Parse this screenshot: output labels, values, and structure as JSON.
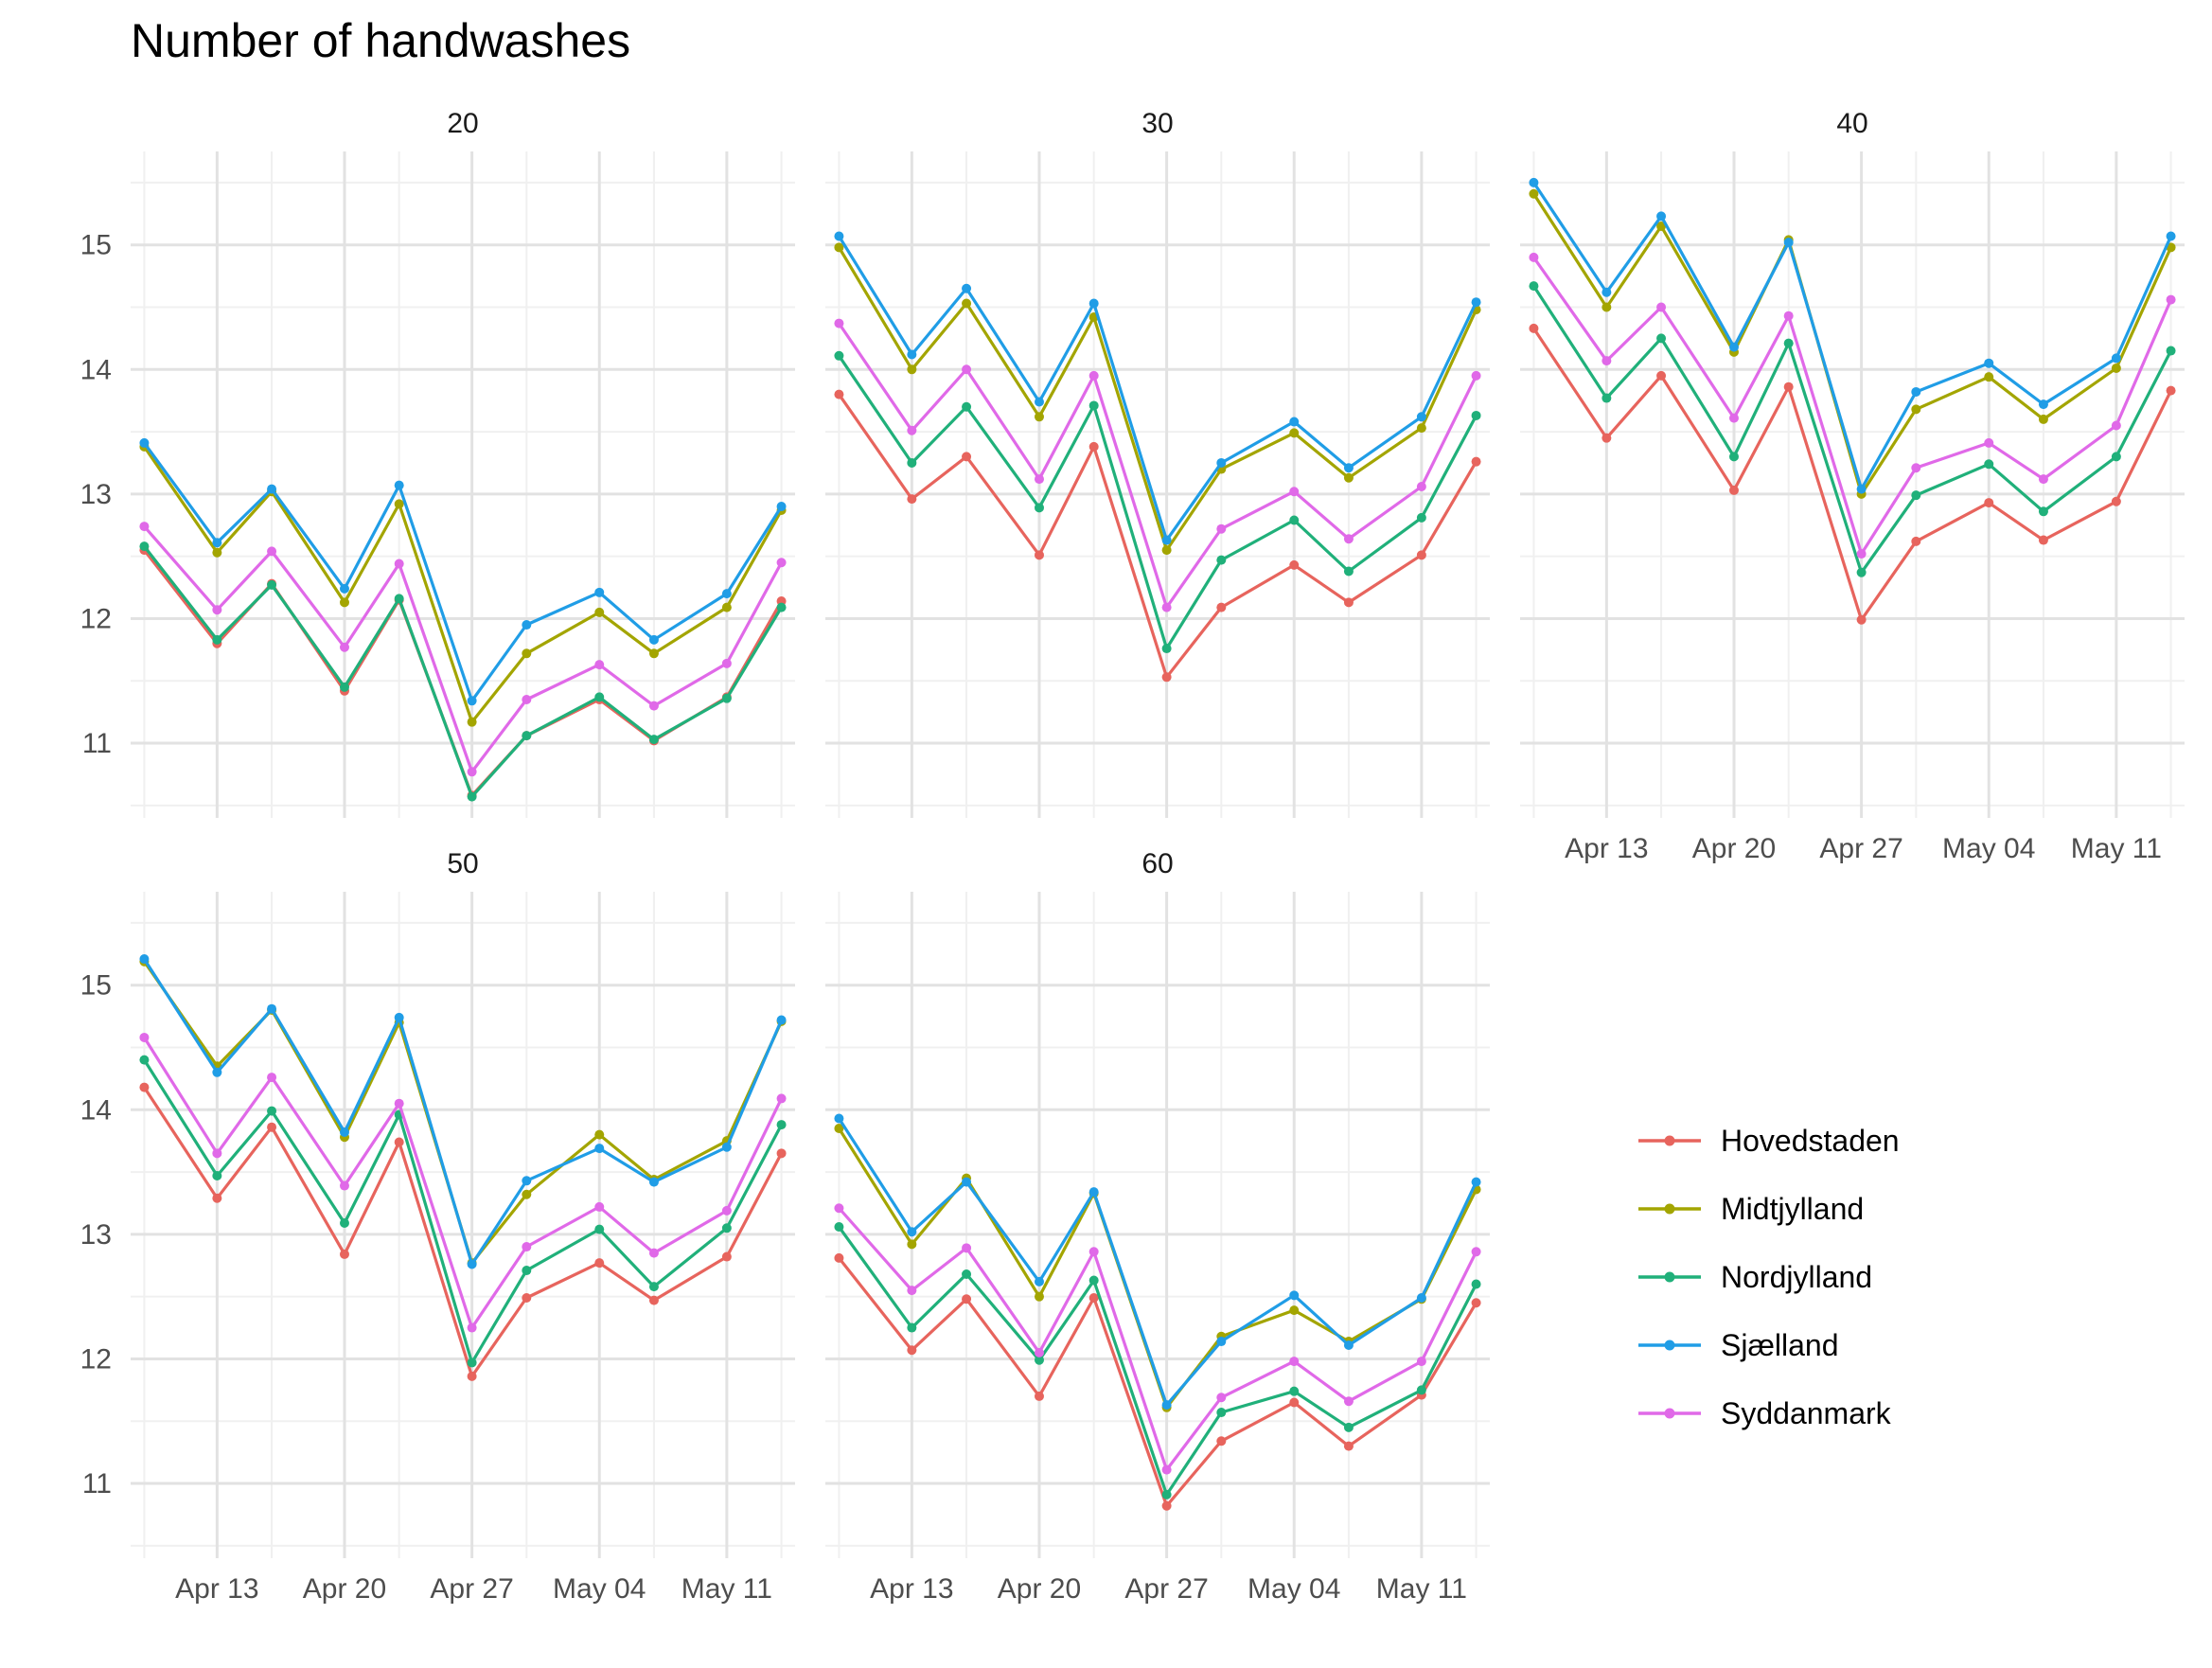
{
  "chart_data": {
    "type": "line",
    "title": "Number of handwashes",
    "xlabel": "",
    "ylabel": "",
    "grid": true,
    "legend_position": "right",
    "x": [
      "2020-04-09",
      "2020-04-13",
      "2020-04-16",
      "2020-04-20",
      "2020-04-23",
      "2020-04-27",
      "2020-04-30",
      "2020-05-04",
      "2020-05-07",
      "2020-05-11",
      "2020-05-14"
    ],
    "x_tick_labels": [
      "Apr 13",
      "Apr 20",
      "Apr 27",
      "May 04",
      "May 11"
    ],
    "y_ticks": [
      11,
      12,
      13,
      14,
      15
    ],
    "ylim": [
      10.4,
      15.75
    ],
    "series_names": [
      "Hovedstaden",
      "Midtjylland",
      "Nordjylland",
      "Sjælland",
      "Syddanmark"
    ],
    "colors": {
      "Hovedstaden": "#E7645D",
      "Midtjylland": "#A3A500",
      "Nordjylland": "#20B07A",
      "Sjælland": "#209DE6",
      "Syddanmark": "#E069E8"
    },
    "panels": [
      {
        "label": "20",
        "series": [
          {
            "name": "Hovedstaden",
            "values": [
              12.55,
              11.8,
              12.28,
              11.42,
              12.15,
              10.58,
              11.06,
              11.35,
              11.02,
              11.37,
              12.14
            ]
          },
          {
            "name": "Midtjylland",
            "values": [
              13.38,
              12.53,
              13.02,
              12.13,
              12.92,
              11.17,
              11.72,
              12.05,
              11.72,
              12.09,
              12.87
            ]
          },
          {
            "name": "Nordjylland",
            "values": [
              12.58,
              11.83,
              12.27,
              11.45,
              12.16,
              10.57,
              11.06,
              11.37,
              11.03,
              11.36,
              12.09
            ]
          },
          {
            "name": "Sjælland",
            "values": [
              13.41,
              12.61,
              13.04,
              12.24,
              13.07,
              11.34,
              11.95,
              12.21,
              11.83,
              12.2,
              12.9
            ]
          },
          {
            "name": "Syddanmark",
            "values": [
              12.74,
              12.07,
              12.54,
              11.77,
              12.44,
              10.77,
              11.35,
              11.63,
              11.3,
              11.64,
              12.45
            ]
          }
        ]
      },
      {
        "label": "30",
        "series": [
          {
            "name": "Hovedstaden",
            "values": [
              13.8,
              12.96,
              13.3,
              12.51,
              13.38,
              11.53,
              12.09,
              12.43,
              12.13,
              12.51,
              13.26
            ]
          },
          {
            "name": "Midtjylland",
            "values": [
              14.98,
              14.0,
              14.53,
              13.62,
              14.42,
              12.55,
              13.2,
              13.49,
              13.13,
              13.53,
              14.48
            ]
          },
          {
            "name": "Nordjylland",
            "values": [
              14.11,
              13.25,
              13.7,
              12.89,
              13.71,
              11.76,
              12.47,
              12.79,
              12.38,
              12.81,
              13.63
            ]
          },
          {
            "name": "Sjælland",
            "values": [
              15.07,
              14.12,
              14.65,
              13.74,
              14.53,
              12.63,
              13.25,
              13.58,
              13.21,
              13.62,
              14.54
            ]
          },
          {
            "name": "Syddanmark",
            "values": [
              14.37,
              13.51,
              14.0,
              13.12,
              13.95,
              12.09,
              12.72,
              13.02,
              12.64,
              13.06,
              13.95
            ]
          }
        ]
      },
      {
        "label": "40",
        "series": [
          {
            "name": "Hovedstaden",
            "values": [
              14.33,
              13.45,
              13.95,
              13.03,
              13.86,
              11.99,
              12.62,
              12.93,
              12.63,
              12.94,
              13.83
            ]
          },
          {
            "name": "Midtjylland",
            "values": [
              15.41,
              14.5,
              15.15,
              14.14,
              15.04,
              13.0,
              13.68,
              13.94,
              13.6,
              14.01,
              14.98
            ]
          },
          {
            "name": "Nordjylland",
            "values": [
              14.67,
              13.77,
              14.25,
              13.3,
              14.21,
              12.37,
              12.99,
              13.24,
              12.86,
              13.3,
              14.15
            ]
          },
          {
            "name": "Sjælland",
            "values": [
              15.5,
              14.62,
              15.23,
              14.18,
              15.02,
              13.04,
              13.82,
              14.05,
              13.72,
              14.09,
              15.07
            ]
          },
          {
            "name": "Syddanmark",
            "values": [
              14.9,
              14.07,
              14.5,
              13.61,
              14.43,
              12.52,
              13.21,
              13.41,
              13.12,
              13.55,
              14.56
            ]
          }
        ]
      },
      {
        "label": "50",
        "series": [
          {
            "name": "Hovedstaden",
            "values": [
              14.18,
              13.29,
              13.86,
              12.84,
              13.74,
              11.86,
              12.49,
              12.77,
              12.47,
              12.82,
              13.65
            ]
          },
          {
            "name": "Midtjylland",
            "values": [
              15.19,
              14.35,
              14.8,
              13.78,
              14.7,
              12.77,
              13.32,
              13.8,
              13.44,
              13.75,
              14.71
            ]
          },
          {
            "name": "Nordjylland",
            "values": [
              14.4,
              13.47,
              13.99,
              13.09,
              13.96,
              11.97,
              12.71,
              13.04,
              12.58,
              13.05,
              13.88
            ]
          },
          {
            "name": "Sjælland",
            "values": [
              15.21,
              14.3,
              14.81,
              13.82,
              14.74,
              12.76,
              13.43,
              13.69,
              13.42,
              13.7,
              14.72
            ]
          },
          {
            "name": "Syddanmark",
            "values": [
              14.58,
              13.65,
              14.26,
              13.39,
              14.05,
              12.25,
              12.9,
              13.22,
              12.85,
              13.19,
              14.09
            ]
          }
        ]
      },
      {
        "label": "60",
        "series": [
          {
            "name": "Hovedstaden",
            "values": [
              12.81,
              12.07,
              12.48,
              11.7,
              12.49,
              10.82,
              11.34,
              11.65,
              11.3,
              11.71,
              12.45
            ]
          },
          {
            "name": "Midtjylland",
            "values": [
              13.85,
              12.92,
              13.45,
              12.5,
              13.33,
              11.61,
              12.18,
              12.39,
              12.14,
              12.48,
              13.36
            ]
          },
          {
            "name": "Nordjylland",
            "values": [
              13.06,
              12.25,
              12.68,
              11.99,
              12.63,
              10.91,
              11.57,
              11.74,
              11.45,
              11.75,
              12.6
            ]
          },
          {
            "name": "Sjælland",
            "values": [
              13.93,
              13.02,
              13.42,
              12.62,
              13.34,
              11.63,
              12.14,
              12.51,
              12.11,
              12.49,
              13.42
            ]
          },
          {
            "name": "Syddanmark",
            "values": [
              13.21,
              12.55,
              12.89,
              12.05,
              12.86,
              11.11,
              11.69,
              11.98,
              11.66,
              11.98,
              12.86
            ]
          }
        ]
      }
    ]
  }
}
